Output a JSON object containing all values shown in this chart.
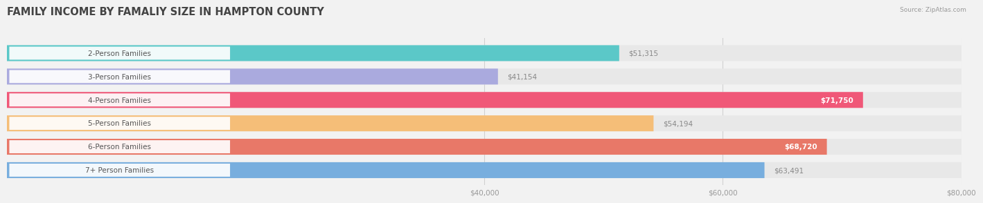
{
  "title": "FAMILY INCOME BY FAMALIY SIZE IN HAMPTON COUNTY",
  "source": "Source: ZipAtlas.com",
  "categories": [
    "2-Person Families",
    "3-Person Families",
    "4-Person Families",
    "5-Person Families",
    "6-Person Families",
    "7+ Person Families"
  ],
  "values": [
    51315,
    41154,
    71750,
    54194,
    68720,
    63491
  ],
  "bar_colors": [
    "#5BC8C8",
    "#AAAADE",
    "#F05878",
    "#F5BE78",
    "#E87868",
    "#78AEDE"
  ],
  "value_labels": [
    "$51,315",
    "$41,154",
    "$71,750",
    "$54,194",
    "$68,720",
    "$63,491"
  ],
  "inside_label_color": "white",
  "outside_label_color": "#888888",
  "inside_threshold": 65000,
  "xmin": 0,
  "xmax": 80000,
  "xticks": [
    40000,
    60000,
    80000
  ],
  "xtick_labels": [
    "$40,000",
    "$60,000",
    "$80,000"
  ],
  "title_fontsize": 10.5,
  "label_fontsize": 7.5,
  "value_fontsize": 7.5,
  "bar_height": 0.68,
  "background_color": "#f2f2f2",
  "bar_background_color": "#e8e8e8",
  "label_pill_color": "#ffffff",
  "label_text_color": "#555555"
}
